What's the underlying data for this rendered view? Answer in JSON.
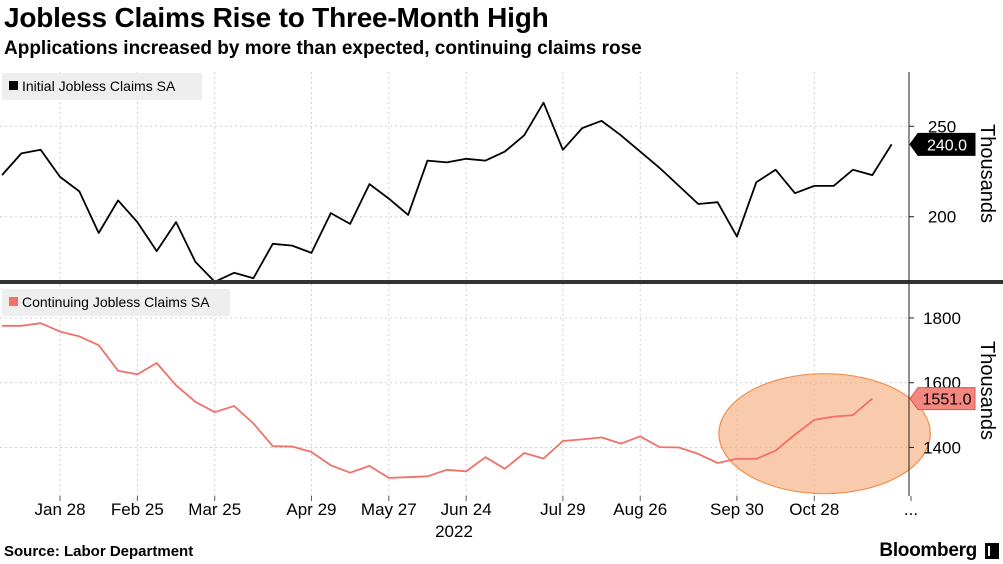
{
  "title": "Jobless Claims Rise to Three-Month High",
  "subtitle": "Applications increased by more than expected, continuing claims rose",
  "source": "Source: Labor Department",
  "brand": "Bloomberg",
  "chart_data": [
    {
      "type": "line",
      "legend": "Initial Jobless Claims SA",
      "legend_position": "top-left",
      "ylabel": "Thousands",
      "yticks": [
        200,
        250
      ],
      "ylim": [
        165,
        280
      ],
      "grid": true,
      "color": "#000000",
      "last_value_label": "240.0",
      "x_index_range": [
        0,
        47
      ],
      "values": [
        223,
        235,
        237,
        222,
        214,
        191,
        209,
        197,
        181,
        197,
        175,
        164,
        169,
        166,
        185,
        184,
        180,
        202,
        196,
        218,
        210,
        201,
        231,
        230,
        232,
        231,
        236,
        245,
        263,
        237,
        249,
        253,
        245,
        236,
        227,
        217,
        207,
        208,
        189,
        219,
        226,
        213,
        217,
        217,
        226,
        223,
        240
      ]
    },
    {
      "type": "line",
      "legend": "Continuing Jobless Claims SA",
      "legend_position": "top-left",
      "ylabel": "Thousands",
      "yticks": [
        1400,
        1600,
        1800
      ],
      "ylim": [
        1250,
        1905
      ],
      "grid": true,
      "color": "#f07167",
      "last_value_label": "1551.0",
      "x_index_range": [
        0,
        47
      ],
      "values": [
        1776,
        1776,
        1784,
        1758,
        1743,
        1716,
        1637,
        1626,
        1661,
        1592,
        1541,
        1509,
        1528,
        1474,
        1404,
        1403,
        1386,
        1345,
        1322,
        1343,
        1306,
        1308,
        1311,
        1331,
        1326,
        1370,
        1334,
        1383,
        1366,
        1420,
        1425,
        1431,
        1412,
        1434,
        1401,
        1400,
        1380,
        1352,
        1365,
        1365,
        1390,
        1440,
        1485,
        1495,
        1500,
        1551
      ],
      "highlight": {
        "x_from": 38,
        "x_to": 45
      }
    }
  ],
  "x_axis": {
    "ticks": [
      {
        "label": "Jan 28",
        "x_index": 3
      },
      {
        "label": "Feb 25",
        "x_index": 7
      },
      {
        "label": "Mar 25",
        "x_index": 11
      },
      {
        "label": "Apr 29",
        "x_index": 16
      },
      {
        "label": "May 27",
        "x_index": 20
      },
      {
        "label": "Jun 24",
        "x_index": 24
      },
      {
        "label": "Jul 29",
        "x_index": 29
      },
      {
        "label": "Aug 26",
        "x_index": 33
      },
      {
        "label": "Sep 30",
        "x_index": 38
      },
      {
        "label": "Oct 28",
        "x_index": 42
      },
      {
        "label": "...",
        "x_index": 47
      }
    ],
    "year_label": "2022"
  }
}
